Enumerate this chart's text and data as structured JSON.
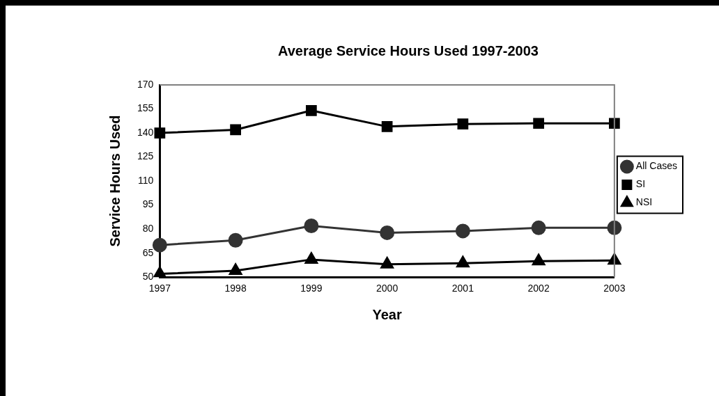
{
  "chart_data": {
    "type": "line",
    "title": "Average Service Hours Used 1997-2003",
    "xlabel": "Year",
    "ylabel": "Service Hours Used",
    "categories": [
      "1997",
      "1998",
      "1999",
      "2000",
      "2001",
      "2002",
      "2003"
    ],
    "series": [
      {
        "name": "All Cases",
        "color": "#333333",
        "marker": "circle",
        "values": [
          70,
          73,
          82,
          77.7,
          78.8,
          80.8,
          80.8
        ]
      },
      {
        "name": "SI",
        "color": "#000000",
        "marker": "square",
        "values": [
          140,
          142,
          154,
          144,
          145.6,
          146,
          146
        ]
      },
      {
        "name": "NSI",
        "color": "#000000",
        "marker": "triangle",
        "values": [
          52,
          54,
          61,
          58,
          58.7,
          60,
          60.4
        ]
      }
    ],
    "ylim": [
      50,
      170
    ],
    "yticks": [
      50,
      65,
      80,
      95,
      110,
      125,
      140,
      155,
      170
    ],
    "grid": false,
    "legend": "right",
    "line_style": "solid"
  }
}
